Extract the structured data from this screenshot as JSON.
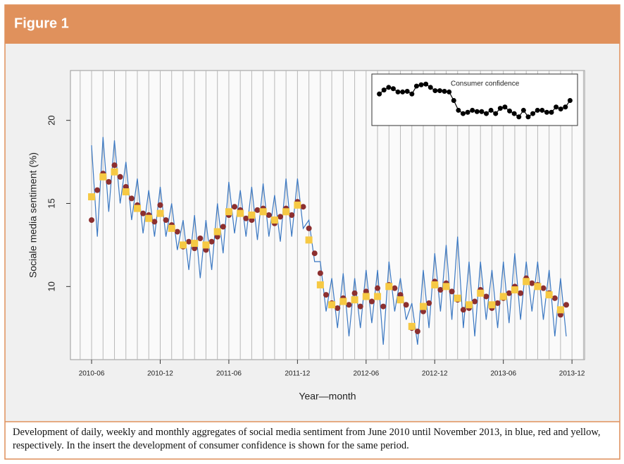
{
  "header": {
    "title": "Figure 1"
  },
  "caption": "Development of daily, weekly and monthly aggregates of social media sentiment from June 2010 until November 2013, in blue, red and yellow, respectively. In the insert the development of consumer confidence is shown for the same period.",
  "chart_data": [
    {
      "type": "line",
      "x_label": "Year—month",
      "y_label": "Sociale media sentiment (%)",
      "xlim": [
        -1.85,
        43.1
      ],
      "ylim": [
        5.6,
        23
      ],
      "yticks": [
        10,
        15,
        20
      ],
      "xticks": [
        {
          "value": 0,
          "label": "2010-06"
        },
        {
          "value": 6,
          "label": "2010-12"
        },
        {
          "value": 12,
          "label": "2011-06"
        },
        {
          "value": 18,
          "label": "2011-12"
        },
        {
          "value": 24,
          "label": "2012-06"
        },
        {
          "value": 30,
          "label": "2012-12"
        },
        {
          "value": 36,
          "label": "2013-06"
        },
        {
          "value": 42,
          "label": "2013-12"
        }
      ],
      "grid": true,
      "series": [
        {
          "style": "line",
          "color": "#3b78c2",
          "x": [
            0,
            0.5,
            1,
            1.5,
            2,
            2.5,
            3,
            3.5,
            4,
            4.5,
            5,
            5.5,
            6,
            6.5,
            7,
            7.5,
            8,
            8.5,
            9,
            9.5,
            10,
            10.5,
            11,
            11.5,
            12,
            12.5,
            13,
            13.5,
            14,
            14.5,
            15,
            15.5,
            16,
            16.5,
            17,
            17.5,
            18,
            18.5,
            19,
            19.5,
            20,
            20.5,
            21,
            21.5,
            22,
            22.5,
            23,
            23.5,
            24,
            24.5,
            25,
            25.5,
            26,
            26.5,
            27,
            27.5,
            28,
            28.5,
            29,
            29.5,
            30,
            30.5,
            31,
            31.5,
            32,
            32.5,
            33,
            33.5,
            34,
            34.5,
            35,
            35.5,
            36,
            36.5,
            37,
            37.5,
            38,
            38.5,
            39,
            39.5,
            40,
            40.5,
            41,
            41.5
          ],
          "values": [
            18.5,
            13.0,
            19.0,
            14.5,
            18.8,
            15.0,
            17.5,
            14.0,
            16.5,
            13.2,
            15.8,
            13.0,
            16.0,
            13.0,
            15.0,
            12.2,
            14.0,
            11.0,
            14.3,
            10.5,
            14.0,
            11.0,
            15.0,
            12.0,
            16.3,
            13.2,
            15.8,
            13.0,
            16.0,
            12.8,
            16.2,
            13.0,
            15.5,
            12.7,
            16.5,
            13.0,
            16.5,
            13.5,
            14.0,
            11.5,
            11.5,
            8.5,
            10.5,
            7.5,
            10.8,
            7.0,
            10.5,
            7.5,
            11.0,
            7.8,
            11.0,
            6.5,
            11.5,
            8.5,
            10.5,
            8.0,
            9.0,
            6.5,
            11.0,
            7.5,
            12.0,
            8.5,
            12.5,
            8.0,
            13.0,
            7.5,
            11.5,
            7.0,
            11.5,
            8.0,
            11.0,
            7.5,
            11.5,
            7.8,
            12.0,
            8.0,
            11.5,
            8.5,
            11.5,
            8.0,
            11.0,
            7.0,
            10.5,
            7.0
          ]
        },
        {
          "style": "point",
          "color": "#8c2f2f",
          "x": [
            0,
            0.5,
            1,
            1.5,
            2,
            2.5,
            3,
            3.5,
            4,
            4.5,
            5,
            5.5,
            6,
            6.5,
            7,
            7.5,
            8,
            8.5,
            9,
            9.5,
            10,
            10.5,
            11,
            11.5,
            12,
            12.5,
            13,
            13.5,
            14,
            14.5,
            15,
            15.5,
            16,
            16.5,
            17,
            17.5,
            18,
            18.5,
            19,
            19.5,
            20,
            20.5,
            21,
            21.5,
            22,
            22.5,
            23,
            23.5,
            24,
            24.5,
            25,
            25.5,
            26,
            26.5,
            27,
            27.5,
            28,
            28.5,
            29,
            29.5,
            30,
            30.5,
            31,
            31.5,
            32,
            32.5,
            33,
            33.5,
            34,
            34.5,
            35,
            35.5,
            36,
            36.5,
            37,
            37.5,
            38,
            38.5,
            39,
            39.5,
            40,
            40.5,
            41,
            41.5
          ],
          "values": [
            14.0,
            15.8,
            16.8,
            16.3,
            17.3,
            16.6,
            16.0,
            15.3,
            14.9,
            14.4,
            14.3,
            13.9,
            14.9,
            14.0,
            13.7,
            13.3,
            12.4,
            12.7,
            12.3,
            12.9,
            12.2,
            12.7,
            13.0,
            13.6,
            14.3,
            14.8,
            14.6,
            14.1,
            14.0,
            14.6,
            14.7,
            14.3,
            13.8,
            14.2,
            14.7,
            14.3,
            15.1,
            14.8,
            13.5,
            12.0,
            10.8,
            9.5,
            9.0,
            8.7,
            9.3,
            8.9,
            9.6,
            8.8,
            9.7,
            9.1,
            9.9,
            8.8,
            10.1,
            9.9,
            9.5,
            8.9,
            7.5,
            7.3,
            8.5,
            9.0,
            10.3,
            9.8,
            10.2,
            9.7,
            9.2,
            8.6,
            8.7,
            9.1,
            9.8,
            9.4,
            8.7,
            9.0,
            9.3,
            9.6,
            10.0,
            9.6,
            10.5,
            10.2,
            10.1,
            9.9,
            9.6,
            9.3,
            8.3,
            8.9
          ]
        },
        {
          "style": "square",
          "color": "#f6c944",
          "x": [
            0,
            1,
            2,
            3,
            4,
            5,
            6,
            7,
            8,
            9,
            10,
            11,
            12,
            13,
            14,
            15,
            16,
            17,
            18,
            19,
            20,
            21,
            22,
            23,
            24,
            25,
            26,
            27,
            28,
            29,
            30,
            31,
            32,
            33,
            34,
            35,
            36,
            37,
            38,
            39,
            40,
            41
          ],
          "values": [
            15.4,
            16.6,
            16.9,
            15.7,
            14.7,
            14.1,
            14.4,
            13.5,
            12.5,
            12.6,
            12.5,
            13.3,
            14.5,
            14.4,
            14.3,
            14.5,
            14.0,
            14.5,
            14.9,
            12.8,
            10.1,
            8.9,
            9.1,
            9.2,
            9.4,
            9.4,
            10.0,
            9.2,
            7.6,
            8.8,
            10.1,
            10.0,
            9.3,
            8.9,
            9.6,
            8.9,
            9.4,
            9.8,
            10.3,
            10.0,
            9.5,
            8.6
          ]
        }
      ]
    },
    {
      "type": "line",
      "title": "Consumer confidence",
      "xlim": [
        -1,
        42
      ],
      "ylim": [
        0.5,
        7.5
      ],
      "color": "#000000",
      "x": [
        0,
        1,
        2,
        3,
        4,
        5,
        6,
        7,
        8,
        9,
        10,
        11,
        12,
        13,
        14,
        15,
        16,
        17,
        18,
        19,
        20,
        21,
        22,
        23,
        24,
        25,
        26,
        27,
        28,
        29,
        30,
        31,
        32,
        33,
        34,
        35,
        36,
        37,
        38,
        39,
        40,
        41
      ],
      "values": [
        5.0,
        5.6,
        6.0,
        5.8,
        5.3,
        5.3,
        5.4,
        5.0,
        6.2,
        6.4,
        6.5,
        6.0,
        5.5,
        5.5,
        5.4,
        5.3,
        4.0,
        2.5,
        2.0,
        2.2,
        2.5,
        2.3,
        2.3,
        2.0,
        2.5,
        2.0,
        2.8,
        3.0,
        2.4,
        2.0,
        1.5,
        2.5,
        1.5,
        2.0,
        2.5,
        2.5,
        2.2,
        2.2,
        3.0,
        2.7,
        3.0,
        4.0
      ]
    }
  ]
}
